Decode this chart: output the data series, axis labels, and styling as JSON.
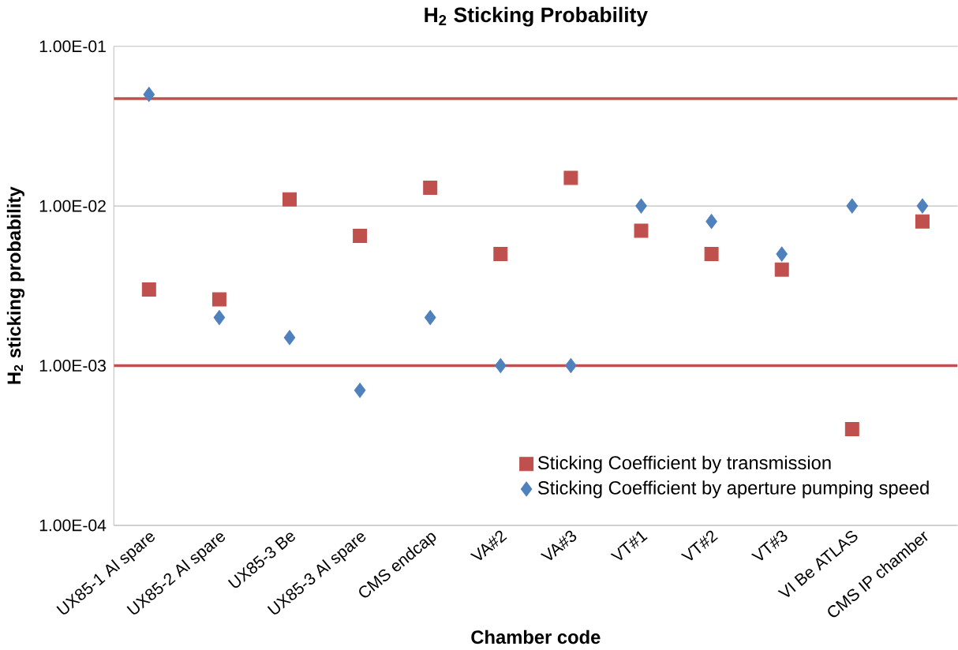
{
  "chart_data": {
    "type": "scatter",
    "title": "H$_{2}$ Sticking Probability",
    "xlabel": "Chamber code",
    "ylabel": "H$_{2}$ sticking probability",
    "categories": [
      "UX85-1 Al spare",
      "UX85-2 Al spare",
      "UX85-3 Be",
      "UX85-3 Al spare",
      "CMS endcap",
      "VA#2",
      "VA#3",
      "VT#1",
      "VT#2",
      "VT#3",
      "VI Be ATLAS",
      "CMS IP chamber"
    ],
    "series": [
      {
        "name": "Sticking Coefficient by transmission",
        "color": "#c0504d",
        "marker": "square",
        "values": [
          0.003,
          0.0026,
          0.011,
          0.0065,
          0.013,
          0.005,
          0.015,
          0.007,
          0.005,
          0.004,
          0.0004,
          0.008
        ]
      },
      {
        "name": "Sticking Coefficient by aperture pumping speed",
        "color": "#4f81bd",
        "marker": "diamond",
        "values": [
          0.05,
          0.002,
          0.0015,
          0.0007,
          0.002,
          0.001,
          0.001,
          0.01,
          0.008,
          0.005,
          0.01,
          0.01
        ]
      }
    ],
    "log": "y",
    "ylim": [
      0.0001,
      0.1
    ],
    "yticks": [
      {
        "value": 0.0001,
        "label": "1.00E-04"
      },
      {
        "value": 0.001,
        "label": "1.00E-03"
      },
      {
        "value": 0.01,
        "label": "1.00E-02"
      },
      {
        "value": 0.1,
        "label": "1.00E-01"
      }
    ],
    "ref_lines": [
      {
        "axis": "y",
        "value": 0.047,
        "color": "#c0504d"
      },
      {
        "axis": "y",
        "value": 0.001,
        "color": "#c0504d"
      }
    ],
    "grid": "y",
    "legend": "bottom right"
  }
}
